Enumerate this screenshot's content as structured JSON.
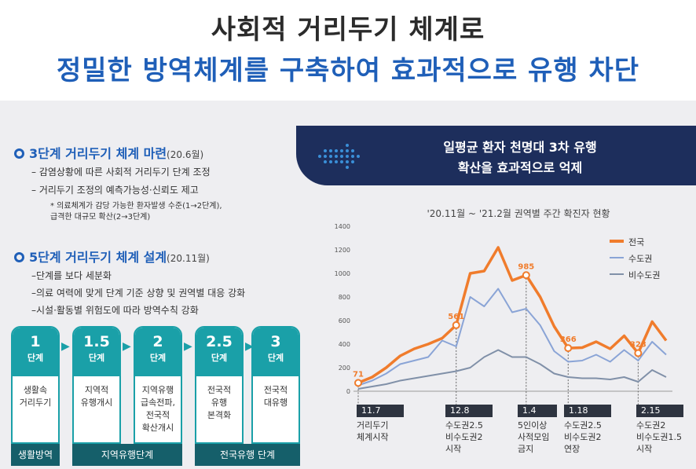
{
  "header": {
    "title_line1": "사회적 거리두기 체계로",
    "title_line2": "정밀한 방역체계를 구축하여 효과적으로 유행 차단"
  },
  "left": {
    "section1": {
      "title": "3단계 거리두기 체계 마련",
      "date": "(20.6월)",
      "items": [
        "–  감염상황에 따른 사회적 거리두기 단계 조정",
        "–  거리두기 조정의 예측가능성·신뢰도 제고"
      ],
      "note": "* 의료체계가 감당 가능한 환자발생 수준(1→2단계),\n  급격한 대규모 확산(2→3단계)"
    },
    "section2": {
      "title": "5단계 거리두기 체계 설계",
      "date": "(20.11월)",
      "items": [
        "–단계를 보다 세분화",
        "–의료 여력에 맞게 단계 기준 상향 및 권역별 대응 강화",
        "–시설·활동별 위험도에 따라 방역수칙 강화"
      ]
    },
    "steps": [
      {
        "num": "1",
        "unit": "단계",
        "desc": "생활속\n거리두기"
      },
      {
        "num": "1.5",
        "unit": "단계",
        "desc": "지역적\n유행개시"
      },
      {
        "num": "2",
        "unit": "단계",
        "desc": "지역유행\n급속전파,\n전국적\n확산개시"
      },
      {
        "num": "2.5",
        "unit": "단계",
        "desc": "전국적\n유행\n본격화"
      },
      {
        "num": "3",
        "unit": "단계",
        "desc": "전국적\n대유행"
      }
    ],
    "bands": [
      "생활방역",
      "지역유행단계",
      "전국유행 단계"
    ]
  },
  "right": {
    "banner_line1": "일평균 환자 천명대 3차 유행",
    "banner_line2": "확산을 효과적으로 억제",
    "chart_title": "'20.11월 ~ '21.2월 권역별 주간 확진자 현황",
    "events": [
      {
        "date": "11.7",
        "text": "거리두기\n체계시작"
      },
      {
        "date": "12.8",
        "text": "수도권2.5\n비수도권2\n시작"
      },
      {
        "date": "1.4",
        "text": "5인이상\n사적모임\n금지"
      },
      {
        "date": "1.18",
        "text": "수도권2.5\n비수도권2\n연장"
      },
      {
        "date": "2.15",
        "text": "수도권2\n비수도권1.5\n시작"
      }
    ]
  },
  "chart_data": {
    "type": "line",
    "title": "'20.11월 ~ '21.2월 권역별 주간 확진자 현황",
    "ylim": [
      0,
      1400
    ],
    "yticks": [
      0,
      200,
      400,
      600,
      800,
      1000,
      1200,
      1400
    ],
    "legend_position": "top-right",
    "series": [
      {
        "name": "전국",
        "color": "#f07c2c",
        "values": [
          71,
          120,
          200,
          300,
          360,
          400,
          450,
          561,
          1000,
          1020,
          1220,
          940,
          985,
          800,
          550,
          366,
          370,
          420,
          360,
          470,
          323,
          590,
          430
        ]
      },
      {
        "name": "수도권",
        "color": "#8aa4d6",
        "values": [
          50,
          90,
          150,
          230,
          260,
          290,
          430,
          380,
          800,
          720,
          870,
          670,
          700,
          560,
          340,
          250,
          260,
          310,
          250,
          350,
          260,
          420,
          310
        ]
      },
      {
        "name": "비수도권",
        "color": "#8090a8",
        "values": [
          20,
          40,
          60,
          90,
          110,
          130,
          150,
          170,
          200,
          290,
          350,
          290,
          290,
          230,
          150,
          120,
          110,
          110,
          100,
          120,
          80,
          180,
          120
        ]
      }
    ],
    "data_labels": [
      {
        "series": "전국",
        "index": 0,
        "label": "71"
      },
      {
        "series": "전국",
        "index": 7,
        "label": "561"
      },
      {
        "series": "전국",
        "index": 12,
        "label": "985"
      },
      {
        "series": "전국",
        "index": 15,
        "label": "366"
      },
      {
        "series": "전국",
        "index": 20,
        "label": "323"
      }
    ]
  }
}
